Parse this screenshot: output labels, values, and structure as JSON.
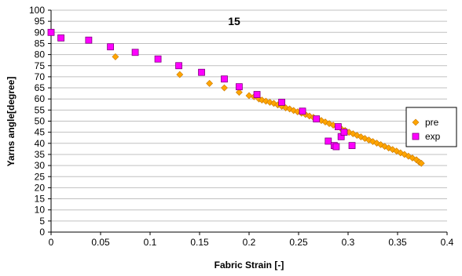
{
  "chart_data": {
    "type": "scatter",
    "title": "15",
    "xlabel": "Fabric Strain [-]",
    "ylabel": "Yarns angle[degree]",
    "xlim": [
      0,
      0.4
    ],
    "ylim": [
      0,
      100
    ],
    "x_ticks": [
      "0",
      "0.05",
      "0.1",
      "0.15",
      "0.2",
      "0.25",
      "0.3",
      "0.35",
      "0.4"
    ],
    "y_ticks": [
      "0",
      "5",
      "10",
      "15",
      "20",
      "25",
      "30",
      "35",
      "40",
      "45",
      "50",
      "55",
      "60",
      "65",
      "70",
      "75",
      "80",
      "85",
      "90",
      "95",
      "100"
    ],
    "grid": "horizontal",
    "legend_position": "right",
    "series": [
      {
        "name": "pre",
        "marker": "diamond",
        "color": "#FFA500",
        "edge_color": "#C87800",
        "points": [
          [
            0.065,
            79
          ],
          [
            0.13,
            71
          ],
          [
            0.16,
            67
          ],
          [
            0.175,
            65
          ],
          [
            0.19,
            63
          ],
          [
            0.2,
            61.5
          ],
          [
            0.205,
            61
          ],
          [
            0.21,
            60
          ],
          [
            0.213,
            59.5
          ],
          [
            0.217,
            59
          ],
          [
            0.221,
            58.5
          ],
          [
            0.225,
            58
          ],
          [
            0.229,
            57.3
          ],
          [
            0.233,
            56.7
          ],
          [
            0.237,
            56
          ],
          [
            0.241,
            55.5
          ],
          [
            0.245,
            54.8
          ],
          [
            0.249,
            54.2
          ],
          [
            0.253,
            53.6
          ],
          [
            0.257,
            53
          ],
          [
            0.261,
            52.3
          ],
          [
            0.265,
            51.7
          ],
          [
            0.269,
            51
          ],
          [
            0.273,
            50.3
          ],
          [
            0.277,
            49.6
          ],
          [
            0.281,
            48.9
          ],
          [
            0.285,
            48.2
          ],
          [
            0.289,
            47.4
          ],
          [
            0.293,
            46.6
          ],
          [
            0.297,
            45.8
          ],
          [
            0.301,
            45
          ],
          [
            0.305,
            44.3
          ],
          [
            0.309,
            43.6
          ],
          [
            0.313,
            42.9
          ],
          [
            0.317,
            42.2
          ],
          [
            0.321,
            41.5
          ],
          [
            0.325,
            40.8
          ],
          [
            0.329,
            40.1
          ],
          [
            0.333,
            39.4
          ],
          [
            0.337,
            38.6
          ],
          [
            0.341,
            37.9
          ],
          [
            0.345,
            37.2
          ],
          [
            0.349,
            36.5
          ],
          [
            0.353,
            35.7
          ],
          [
            0.357,
            35
          ],
          [
            0.361,
            34.2
          ],
          [
            0.365,
            33.4
          ],
          [
            0.369,
            32.6
          ],
          [
            0.372,
            31.5
          ],
          [
            0.374,
            31
          ]
        ]
      },
      {
        "name": "exp",
        "marker": "square",
        "color": "#FF00FF",
        "edge_color": "#800080",
        "points": [
          [
            0.0,
            90
          ],
          [
            0.01,
            87.5
          ],
          [
            0.038,
            86.5
          ],
          [
            0.06,
            83.5
          ],
          [
            0.085,
            81
          ],
          [
            0.108,
            78
          ],
          [
            0.129,
            75
          ],
          [
            0.152,
            72
          ],
          [
            0.175,
            69
          ],
          [
            0.19,
            65.5
          ],
          [
            0.208,
            62
          ],
          [
            0.233,
            58.5
          ],
          [
            0.254,
            54.5
          ],
          [
            0.268,
            51
          ],
          [
            0.28,
            41
          ],
          [
            0.286,
            39
          ],
          [
            0.288,
            38.5
          ],
          [
            0.29,
            47.5
          ],
          [
            0.293,
            43
          ],
          [
            0.296,
            45
          ],
          [
            0.304,
            39
          ]
        ]
      }
    ]
  }
}
